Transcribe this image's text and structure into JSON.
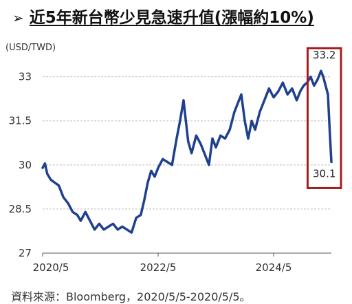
{
  "header": {
    "arrow": "➢",
    "title": "近5年新台幣少見急速升值(漲幅約10%)"
  },
  "unit_label": "(USD/TWD)",
  "source": "資料來源：Bloomberg，2020/5/5-2020/5/5。",
  "colors": {
    "line": "#1f3f8f",
    "grid": "#bdbdbd",
    "highlight": "#a61c1c",
    "axis": "#555555"
  },
  "chart_data": {
    "type": "line",
    "title": "",
    "ylabel": "(USD/TWD)",
    "ylim": [
      27,
      33.6
    ],
    "yticks": [
      27,
      28.5,
      30,
      31.5,
      33
    ],
    "ytick_labels": [
      "27",
      "28.5",
      "30",
      "31.5",
      "33"
    ],
    "xlim": [
      2020.34,
      2025.34
    ],
    "xticks": [
      2020.34,
      2022.34,
      2024.34
    ],
    "xtick_labels": [
      "2020/5",
      "2022/5",
      "2024/5"
    ],
    "grid": true,
    "series": [
      {
        "name": "",
        "x": [
          2020.34,
          2020.38,
          2020.42,
          2020.48,
          2020.55,
          2020.62,
          2020.7,
          2020.78,
          2020.86,
          2020.94,
          2021.0,
          2021.08,
          2021.16,
          2021.24,
          2021.32,
          2021.4,
          2021.48,
          2021.56,
          2021.64,
          2021.72,
          2021.8,
          2021.88,
          2021.96,
          2022.04,
          2022.1,
          2022.16,
          2022.22,
          2022.28,
          2022.34,
          2022.42,
          2022.5,
          2022.58,
          2022.66,
          2022.72,
          2022.78,
          2022.82,
          2022.86,
          2022.92,
          2023.0,
          2023.08,
          2023.16,
          2023.22,
          2023.28,
          2023.34,
          2023.42,
          2023.5,
          2023.58,
          2023.66,
          2023.72,
          2023.78,
          2023.84,
          2023.9,
          2023.96,
          2024.02,
          2024.1,
          2024.18,
          2024.26,
          2024.34,
          2024.42,
          2024.5,
          2024.58,
          2024.66,
          2024.74,
          2024.8,
          2024.86,
          2024.92,
          2024.98,
          2025.04,
          2025.1,
          2025.16,
          2025.2,
          2025.24,
          2025.28,
          2025.31,
          2025.34
        ],
        "values": [
          29.9,
          30.05,
          29.7,
          29.5,
          29.4,
          29.3,
          28.9,
          28.7,
          28.4,
          28.3,
          28.1,
          28.4,
          28.1,
          27.8,
          28.0,
          27.8,
          27.9,
          28.0,
          27.8,
          27.9,
          27.8,
          27.7,
          28.2,
          28.3,
          28.8,
          29.4,
          29.8,
          29.6,
          29.9,
          30.2,
          30.1,
          30.0,
          30.9,
          31.5,
          32.2,
          31.5,
          30.8,
          30.4,
          31.0,
          30.7,
          30.3,
          30.0,
          30.9,
          30.6,
          31.0,
          30.9,
          31.2,
          31.8,
          32.1,
          32.4,
          31.5,
          30.9,
          31.5,
          31.2,
          31.8,
          32.2,
          32.6,
          32.3,
          32.5,
          32.8,
          32.4,
          32.6,
          32.2,
          32.5,
          32.7,
          32.8,
          33.0,
          32.7,
          32.9,
          33.2,
          33.0,
          32.7,
          32.4,
          31.2,
          30.1
        ]
      }
    ],
    "annotations": [
      {
        "text": "33.2",
        "x": 2025.31,
        "y": 33.2
      },
      {
        "text": "30.1",
        "x": 2025.31,
        "y": 30.1
      }
    ],
    "highlight_range": {
      "x0": 2025.0,
      "x1": 2025.34,
      "y0": 29.4,
      "y1": 34.2
    }
  }
}
